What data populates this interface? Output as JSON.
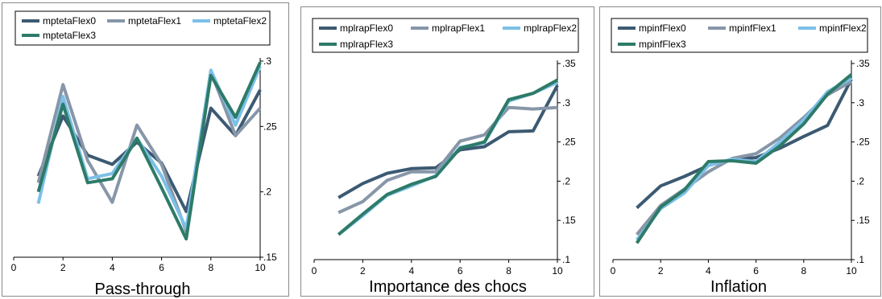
{
  "colors": {
    "Flex0": "#3c5a72",
    "Flex1": "#8796a8",
    "Flex2": "#7cc0e8",
    "Flex3": "#2d7b68",
    "frame": "#8a8a8a",
    "axis": "#000000"
  },
  "chart_data": [
    {
      "type": "line",
      "title": "Pass-through",
      "xlabel": "",
      "ylabel": "",
      "xlim": [
        0,
        10
      ],
      "ylim": [
        0.15,
        0.3
      ],
      "x_ticks": [
        "0",
        "2",
        "4",
        "6",
        "8",
        "10"
      ],
      "y_ticks": [
        ".15",
        ".2",
        ".25",
        ".3"
      ],
      "legend_position": "top-left",
      "grid": false,
      "x": [
        1,
        2,
        3,
        4,
        5,
        6,
        7,
        8,
        9,
        10
      ],
      "series": [
        {
          "name": "mptetaFlex0",
          "key": "Flex0",
          "values": [
            0.212,
            0.258,
            0.228,
            0.221,
            0.238,
            0.222,
            0.185,
            0.264,
            0.243,
            0.278
          ]
        },
        {
          "name": "mptetaFlex1",
          "key": "Flex1",
          "values": [
            0.207,
            0.282,
            0.224,
            0.192,
            0.251,
            0.221,
            0.17,
            0.292,
            0.243,
            0.264
          ]
        },
        {
          "name": "mptetaFlex2",
          "key": "Flex2",
          "values": [
            0.191,
            0.273,
            0.21,
            0.214,
            0.241,
            0.212,
            0.172,
            0.293,
            0.251,
            0.296
          ]
        },
        {
          "name": "mptetaFlex3",
          "key": "Flex3",
          "values": [
            0.2,
            0.267,
            0.207,
            0.21,
            0.241,
            0.203,
            0.164,
            0.289,
            0.257,
            0.299
          ]
        }
      ]
    },
    {
      "type": "line",
      "title": "Importance des chocs",
      "xlabel": "",
      "ylabel": "",
      "xlim": [
        0,
        10
      ],
      "ylim": [
        0.1,
        0.35
      ],
      "x_ticks": [
        "0",
        "2",
        "4",
        "6",
        "8",
        "10"
      ],
      "y_ticks": [
        ".1",
        ".15",
        ".2",
        ".25",
        ".3",
        ".35"
      ],
      "legend_position": "top-left",
      "grid": false,
      "x": [
        1,
        2,
        3,
        4,
        5,
        6,
        7,
        8,
        9,
        10
      ],
      "series": [
        {
          "name": "mplrapFlex0",
          "key": "Flex0",
          "values": [
            0.179,
            0.197,
            0.21,
            0.216,
            0.217,
            0.24,
            0.244,
            0.263,
            0.264,
            0.322
          ]
        },
        {
          "name": "mplrapFlex1",
          "key": "Flex1",
          "values": [
            0.16,
            0.174,
            0.201,
            0.212,
            0.212,
            0.251,
            0.259,
            0.294,
            0.292,
            0.294
          ]
        },
        {
          "name": "mplrapFlex2",
          "key": "Flex2",
          "values": [
            0.132,
            0.156,
            0.182,
            0.194,
            0.207,
            0.243,
            0.249,
            0.302,
            0.312,
            0.326
          ]
        },
        {
          "name": "mplrapFlex3",
          "key": "Flex3",
          "values": [
            0.132,
            0.158,
            0.183,
            0.196,
            0.206,
            0.242,
            0.25,
            0.304,
            0.312,
            0.329
          ]
        }
      ]
    },
    {
      "type": "line",
      "title": "Inflation",
      "xlabel": "",
      "ylabel": "",
      "xlim": [
        0,
        10
      ],
      "ylim": [
        0.1,
        0.35
      ],
      "x_ticks": [
        "0",
        "2",
        "4",
        "6",
        "8",
        "10"
      ],
      "y_ticks": [
        ".1",
        ".15",
        ".2",
        ".25",
        ".3",
        ".35"
      ],
      "legend_position": "top-left",
      "grid": false,
      "x": [
        1,
        2,
        3,
        4,
        5,
        6,
        7,
        8,
        9,
        10
      ],
      "series": [
        {
          "name": "mpinfFlex0",
          "key": "Flex0",
          "values": [
            0.166,
            0.194,
            0.206,
            0.22,
            0.228,
            0.23,
            0.242,
            0.257,
            0.271,
            0.33
          ]
        },
        {
          "name": "mpinfFlex1",
          "key": "Flex1",
          "values": [
            0.132,
            0.169,
            0.19,
            0.212,
            0.229,
            0.235,
            0.255,
            0.281,
            0.31,
            0.327
          ]
        },
        {
          "name": "mpinfFlex2",
          "key": "Flex2",
          "values": [
            0.125,
            0.165,
            0.185,
            0.22,
            0.228,
            0.225,
            0.25,
            0.278,
            0.314,
            0.331
          ]
        },
        {
          "name": "mpinfFlex3",
          "key": "Flex3",
          "values": [
            0.121,
            0.167,
            0.189,
            0.225,
            0.226,
            0.223,
            0.245,
            0.273,
            0.311,
            0.336
          ]
        }
      ]
    }
  ]
}
